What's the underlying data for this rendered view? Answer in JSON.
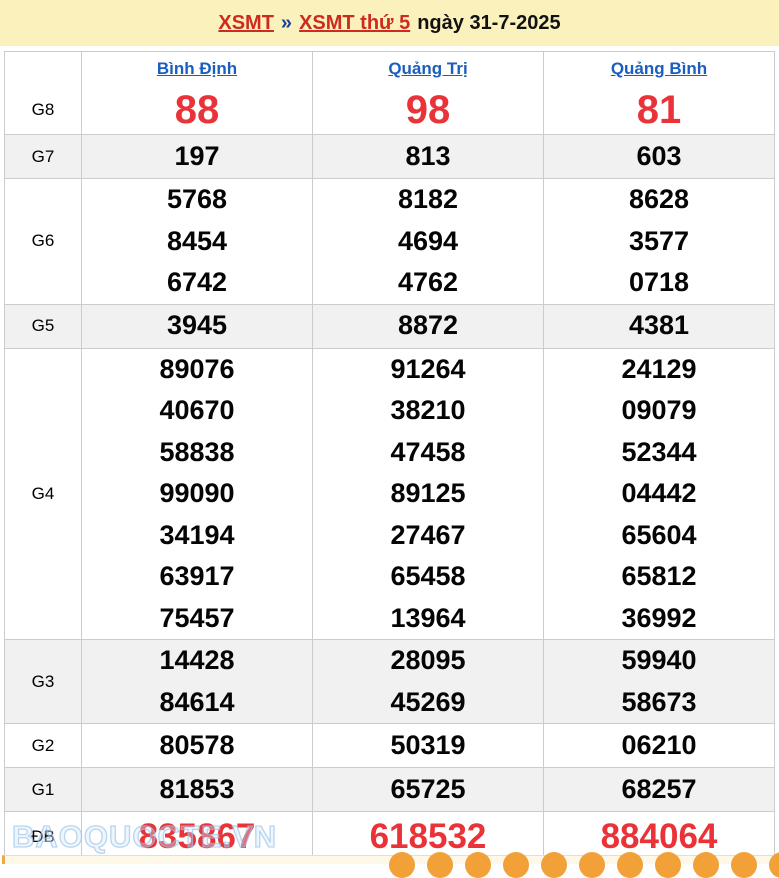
{
  "title": {
    "link_xsmt": "XSMT",
    "separator": "»",
    "link_xsmt_thu": "XSMT thứ 5",
    "date_text": "ngày 31-7-2025"
  },
  "table": {
    "provinces": [
      "Bình Định",
      "Quảng Trị",
      "Quảng Bình"
    ],
    "rows": [
      {
        "key": "g8",
        "label": "G8",
        "shaded": false,
        "cells": [
          [
            "88"
          ],
          [
            "98"
          ],
          [
            "81"
          ]
        ]
      },
      {
        "key": "g7",
        "label": "G7",
        "shaded": true,
        "cells": [
          [
            "197"
          ],
          [
            "813"
          ],
          [
            "603"
          ]
        ]
      },
      {
        "key": "g6",
        "label": "G6",
        "shaded": false,
        "cells": [
          [
            "5768",
            "8454",
            "6742"
          ],
          [
            "8182",
            "4694",
            "4762"
          ],
          [
            "8628",
            "3577",
            "0718"
          ]
        ]
      },
      {
        "key": "g5",
        "label": "G5",
        "shaded": true,
        "cells": [
          [
            "3945"
          ],
          [
            "8872"
          ],
          [
            "4381"
          ]
        ]
      },
      {
        "key": "g4",
        "label": "G4",
        "shaded": false,
        "cells": [
          [
            "89076",
            "40670",
            "58838",
            "99090",
            "34194",
            "63917",
            "75457"
          ],
          [
            "91264",
            "38210",
            "47458",
            "89125",
            "27467",
            "65458",
            "13964"
          ],
          [
            "24129",
            "09079",
            "52344",
            "04442",
            "65604",
            "65812",
            "36992"
          ]
        ]
      },
      {
        "key": "g3",
        "label": "G3",
        "shaded": true,
        "cells": [
          [
            "14428",
            "84614"
          ],
          [
            "28095",
            "45269"
          ],
          [
            "59940",
            "58673"
          ]
        ]
      },
      {
        "key": "g2",
        "label": "G2",
        "shaded": false,
        "cells": [
          [
            "80578"
          ],
          [
            "50319"
          ],
          [
            "06210"
          ]
        ]
      },
      {
        "key": "g1",
        "label": "G1",
        "shaded": true,
        "cells": [
          [
            "81853"
          ],
          [
            "65725"
          ],
          [
            "68257"
          ]
        ]
      },
      {
        "key": "db",
        "label": "ĐB",
        "shaded": false,
        "cells": [
          [
            "835867"
          ],
          [
            "618532"
          ],
          [
            "884064"
          ]
        ]
      }
    ]
  },
  "watermark": "BAOQUOCTE.VN",
  "footer": {
    "ball_count": 11
  },
  "colors": {
    "titlebar_bg": "#faf1bd",
    "title_link_red": "#ce2b1e",
    "separator_navy": "#23408f",
    "province_link_blue": "#1a5ec0",
    "shaded_row": "#f1f1f2",
    "border_gray": "#cccccc",
    "prize_red": "#ea3338",
    "strip_bg": "#fdf8e7",
    "ball_orange": "#f2a138",
    "watermark_blue": "#9ec0e6"
  }
}
